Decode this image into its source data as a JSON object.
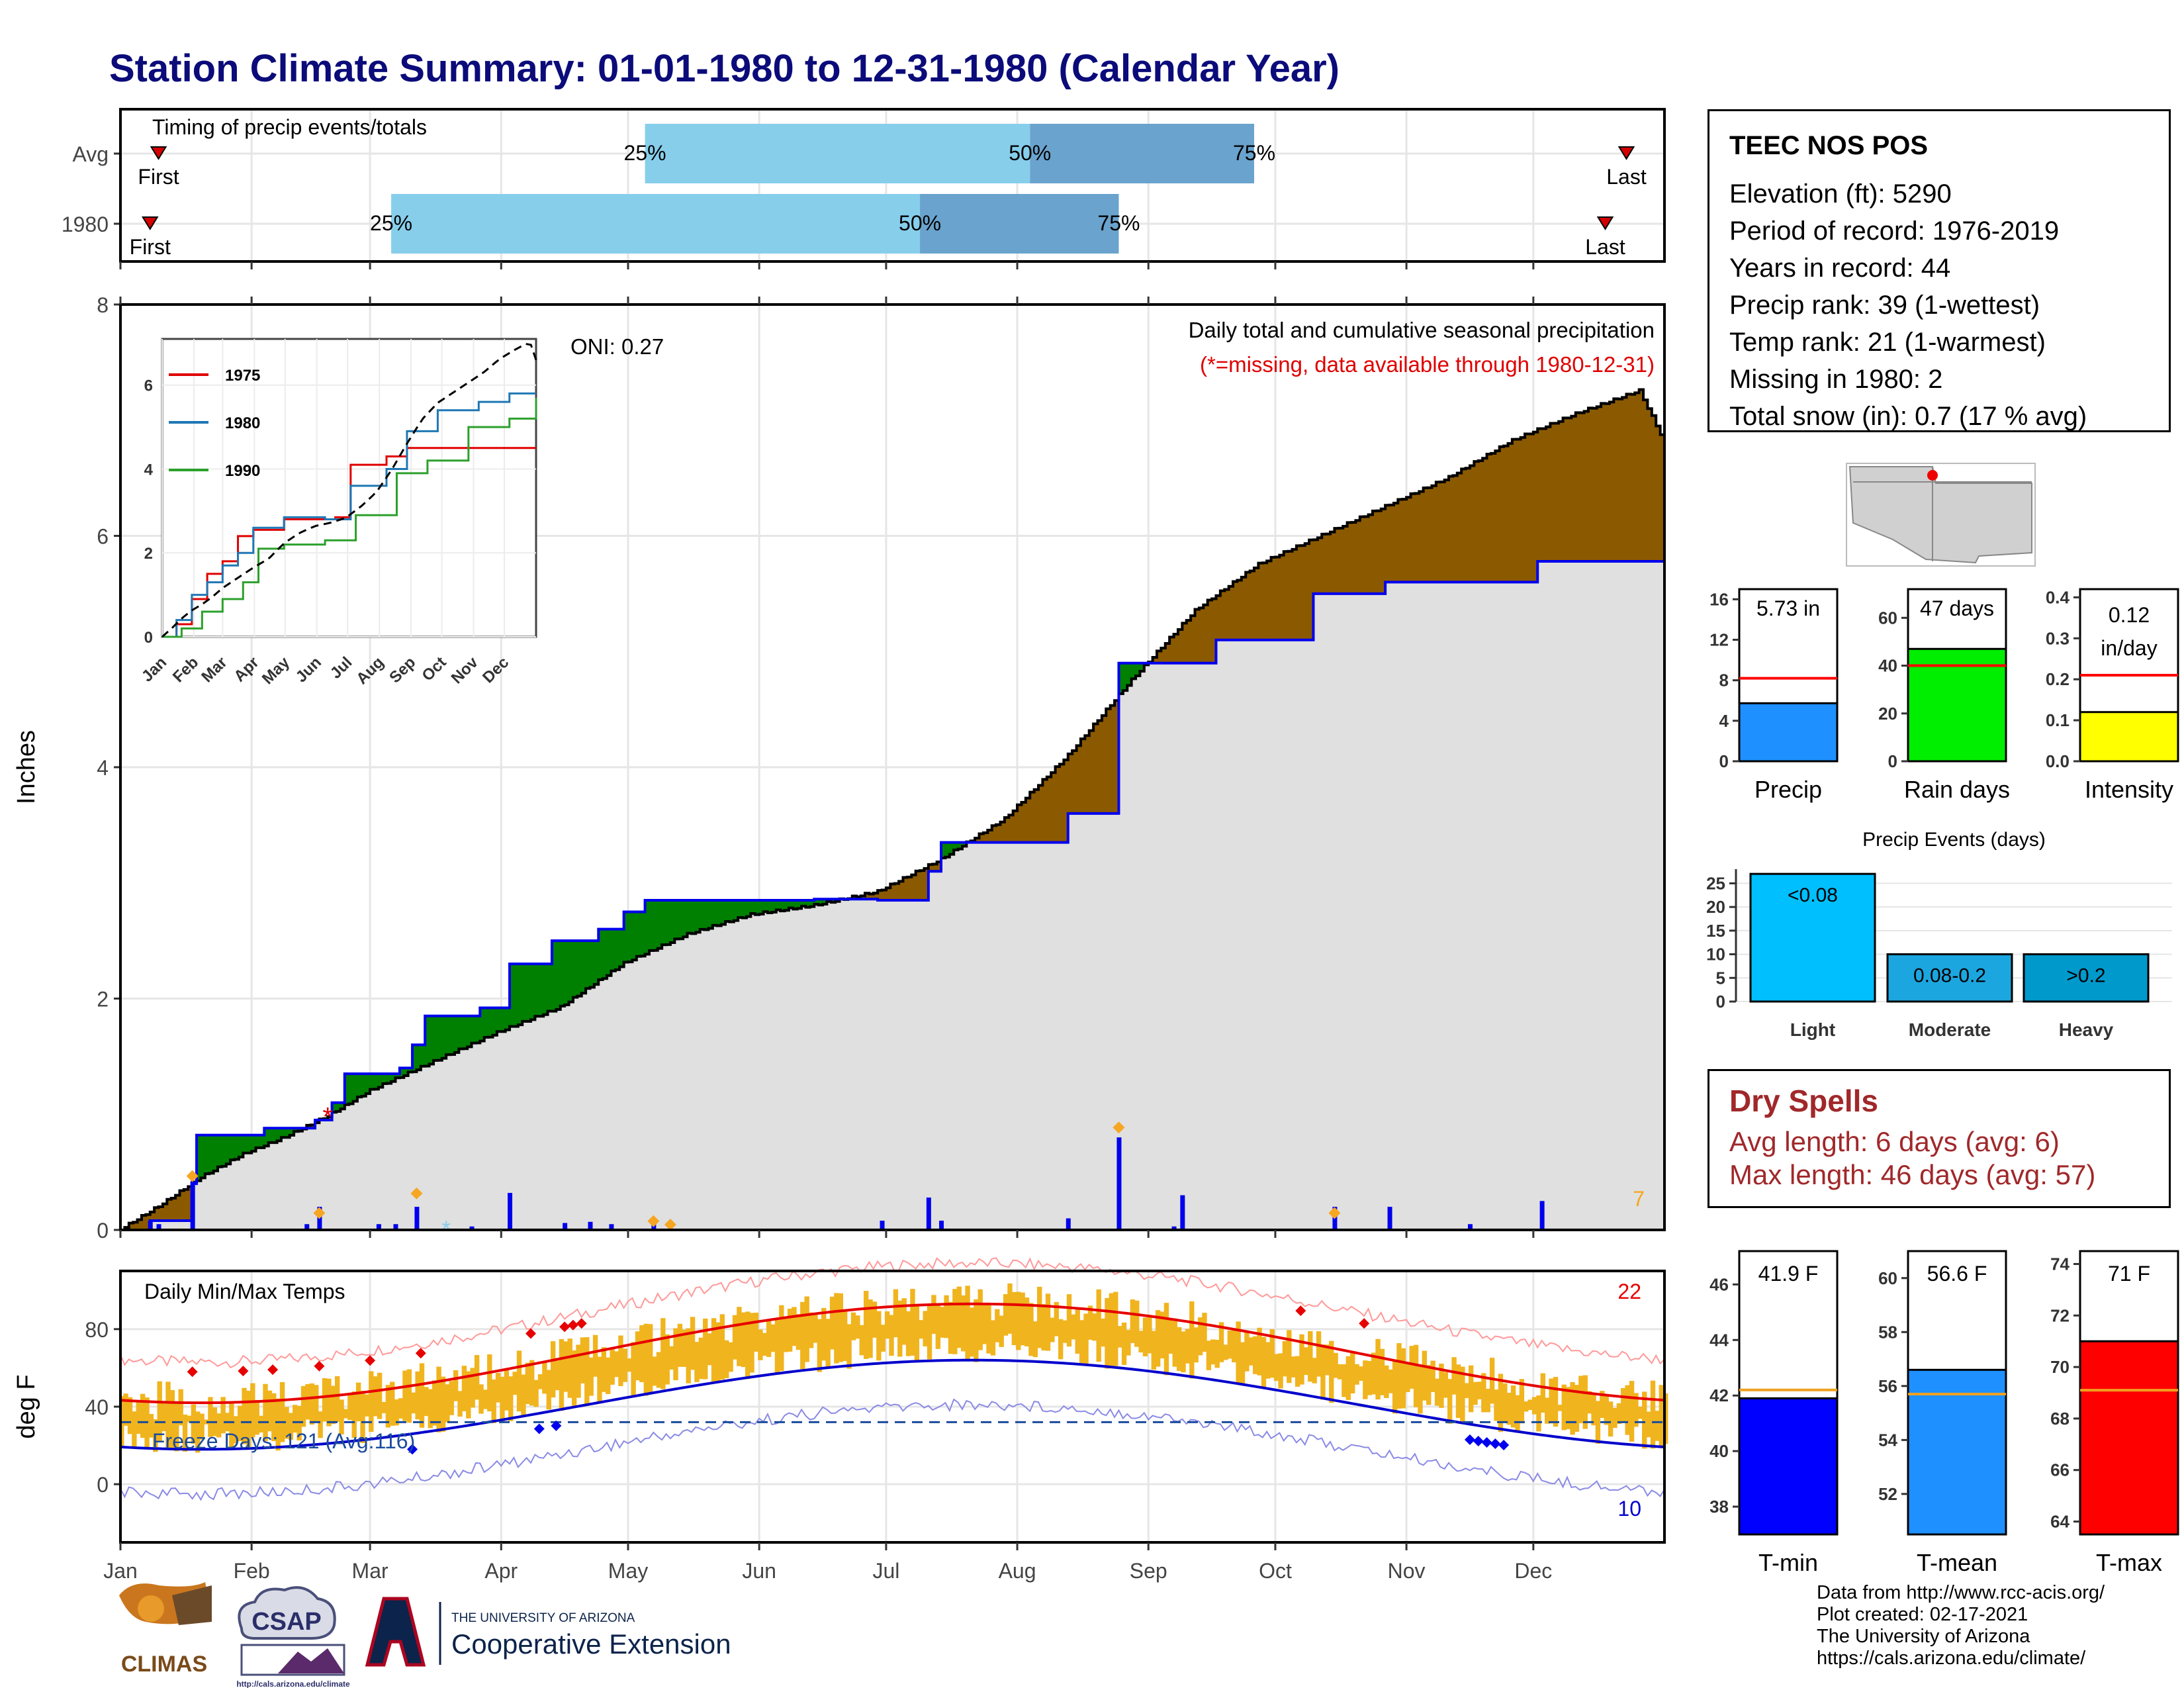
{
  "title": "Station Climate Summary: 01-01-1980 to 12-31-1980 (Calendar Year)",
  "months": [
    "Jan",
    "Feb",
    "Mar",
    "Apr",
    "May",
    "Jun",
    "Jul",
    "Aug",
    "Sep",
    "Oct",
    "Nov",
    "Dec"
  ],
  "station": {
    "name": "TEEC NOS POS",
    "lines": [
      "Elevation (ft): 5290",
      "Period of record: 1976-2019",
      "Years in record: 44",
      "Precip rank: 39 (1-wettest)",
      "Temp rank: 21 (1-warmest)",
      "Missing in 1980: 2",
      "Total snow (in): 0.7 (17 % avg)"
    ]
  },
  "timing": {
    "label": "Timing of precip events/totals",
    "rows": [
      {
        "name": "Avg",
        "first_doy": 10,
        "p25_doy": 125,
        "p50_doy": 216,
        "p75_doy": 269,
        "last_doy": 357
      },
      {
        "name": "1980",
        "first_doy": 8,
        "p25_doy": 65,
        "p50_doy": 190,
        "p75_doy": 237,
        "last_doy": 352
      }
    ],
    "first_label": "First",
    "last_label": "Last",
    "p25_label": "25%",
    "p50_label": "50%",
    "p75_label": "75%",
    "colors": {
      "light": "#87ceeb",
      "dark": "#6aa3cd",
      "marker": "#d40000"
    }
  },
  "chart_data": [
    {
      "type": "line",
      "name": "cumulative-precip",
      "title": "Daily total and cumulative seasonal precipitation",
      "subtitle": "(*=missing, data available through 1980-12-31)",
      "oni": "ONI: 0.27",
      "ylabel": "Inches",
      "xlabel": "",
      "ylim": [
        0,
        8
      ],
      "yticks": [
        0,
        2,
        4,
        6,
        8
      ],
      "x_unit": "day of year",
      "series": [
        {
          "name": "1980 cumulative",
          "color": "#0000dd",
          "points": [
            [
              1,
              0
            ],
            [
              8,
              0.08
            ],
            [
              18,
              0.4
            ],
            [
              19,
              0.82
            ],
            [
              30,
              0.82
            ],
            [
              35,
              0.88
            ],
            [
              47,
              0.95
            ],
            [
              51,
              1.1
            ],
            [
              54,
              1.35
            ],
            [
              67,
              1.4
            ],
            [
              70,
              1.6
            ],
            [
              73,
              1.85
            ],
            [
              86,
              1.92
            ],
            [
              93,
              2.3
            ],
            [
              103,
              2.5
            ],
            [
              114,
              2.6
            ],
            [
              120,
              2.75
            ],
            [
              125,
              2.85
            ],
            [
              165,
              2.86
            ],
            [
              180,
              2.85
            ],
            [
              192,
              3.1
            ],
            [
              195,
              3.35
            ],
            [
              225,
              3.6
            ],
            [
              237,
              4.9
            ],
            [
              260,
              5.1
            ],
            [
              283,
              5.5
            ],
            [
              300,
              5.6
            ],
            [
              336,
              5.78
            ],
            [
              366,
              5.78
            ]
          ]
        },
        {
          "name": "Average cumulative",
          "color": "#000000",
          "points": [
            [
              1,
              0
            ],
            [
              10,
              0.2
            ],
            [
              20,
              0.45
            ],
            [
              30,
              0.65
            ],
            [
              40,
              0.8
            ],
            [
              50,
              0.98
            ],
            [
              60,
              1.2
            ],
            [
              75,
              1.45
            ],
            [
              90,
              1.7
            ],
            [
              105,
              1.92
            ],
            [
              120,
              2.3
            ],
            [
              135,
              2.55
            ],
            [
              150,
              2.72
            ],
            [
              165,
              2.8
            ],
            [
              180,
              2.92
            ],
            [
              195,
              3.2
            ],
            [
              210,
              3.55
            ],
            [
              225,
              4.1
            ],
            [
              240,
              4.75
            ],
            [
              255,
              5.35
            ],
            [
              270,
              5.75
            ],
            [
              285,
              6.0
            ],
            [
              300,
              6.25
            ],
            [
              315,
              6.5
            ],
            [
              330,
              6.82
            ],
            [
              345,
              7.05
            ],
            [
              360,
              7.25
            ],
            [
              366,
              6.8
            ]
          ]
        }
      ],
      "daily_bars": [
        [
          8,
          0.08
        ],
        [
          10,
          0.05
        ],
        [
          18,
          0.42
        ],
        [
          45,
          0.05
        ],
        [
          48,
          0.2
        ],
        [
          62,
          0.05
        ],
        [
          66,
          0.05
        ],
        [
          71,
          0.2
        ],
        [
          84,
          0.03
        ],
        [
          93,
          0.32
        ],
        [
          106,
          0.06
        ],
        [
          112,
          0.07
        ],
        [
          117,
          0.05
        ],
        [
          127,
          0.05
        ],
        [
          181,
          0.08
        ],
        [
          192,
          0.28
        ],
        [
          195,
          0.08
        ],
        [
          225,
          0.1
        ],
        [
          237,
          0.8
        ],
        [
          250,
          0.03
        ],
        [
          252,
          0.3
        ],
        [
          288,
          0.2
        ],
        [
          301,
          0.2
        ],
        [
          320,
          0.05
        ],
        [
          337,
          0.25
        ]
      ],
      "colors": {
        "below_avg": "#8b5a00",
        "above_avg": "#008000",
        "area": "#e0e0e0",
        "bars": "#0000ee",
        "markers": "#f6a623"
      },
      "corner_count": "7"
    },
    {
      "type": "line",
      "name": "daily-temps",
      "title": "Daily Min/Max Temps",
      "ylabel": "deg F",
      "ylim": [
        -30,
        110
      ],
      "yticks": [
        0,
        40,
        80
      ],
      "freeze_label": "Freeze Days: 121 (Avg:116)",
      "freeze_line": 32,
      "record_high_count": "22",
      "record_low_count": "10",
      "normals": {
        "tmax_winter": 42,
        "tmax_summer": 93,
        "tmin_winter": 18,
        "tmin_summer": 64
      },
      "colors": {
        "bars": "#f0b41e",
        "tmax": "#e60000",
        "tmin": "#0000cc",
        "freeze": "#1a4b9c"
      }
    },
    {
      "type": "bar",
      "name": "precip-summary",
      "panels": [
        {
          "label": "Precip",
          "value_label": "5.73 in",
          "value": 5.73,
          "avg": 8.2,
          "ylim": [
            0,
            17
          ],
          "yticks": [
            0,
            4,
            8,
            12,
            16
          ],
          "color": "#1e90ff"
        },
        {
          "label": "Rain days",
          "value_label": "47 days",
          "value": 47,
          "avg": 40,
          "ylim": [
            0,
            72
          ],
          "yticks": [
            0,
            20,
            40,
            60
          ],
          "color": "#00ee00"
        },
        {
          "label": "Intensity",
          "value_label_1": "0.12",
          "value_label_2": "in/day",
          "value": 0.12,
          "avg": 0.21,
          "ylim": [
            0,
            0.42
          ],
          "yticks": [
            0.0,
            0.1,
            0.2,
            0.3,
            0.4
          ],
          "color": "#ffff00"
        }
      ]
    },
    {
      "type": "bar",
      "name": "precip-events",
      "title": "Precip Events (days)",
      "categories": [
        "Light",
        "Moderate",
        "Heavy"
      ],
      "bar_labels": [
        "<0.08",
        "0.08-0.2",
        ">0.2"
      ],
      "values": [
        27,
        10,
        10
      ],
      "ylim": [
        0,
        28
      ],
      "yticks": [
        0,
        5,
        10,
        15,
        20,
        25
      ],
      "colors": [
        "#00bfff",
        "#1ca6e0",
        "#0099cc"
      ]
    },
    {
      "type": "bar",
      "name": "temp-summary",
      "panels": [
        {
          "label": "T-min",
          "value_label": "41.9 F",
          "value": 41.9,
          "avg": 42.2,
          "ylim": [
            37,
            47.2
          ],
          "yticks": [
            38,
            40,
            42,
            44,
            46
          ],
          "color": "#0000ff"
        },
        {
          "label": "T-mean",
          "value_label": "56.6 F",
          "value": 56.6,
          "avg": 55.7,
          "ylim": [
            50.5,
            61
          ],
          "yticks": [
            52,
            54,
            56,
            58,
            60
          ],
          "color": "#1e90ff"
        },
        {
          "label": "T-max",
          "value_label": "71 F",
          "value": 71.0,
          "avg": 69.1,
          "ylim": [
            63.5,
            74.5
          ],
          "yticks": [
            64,
            66,
            68,
            70,
            72,
            74
          ],
          "color": "#ff0000"
        }
      ]
    }
  ],
  "inset": {
    "legend": [
      {
        "name": "1975",
        "color": "#e00000"
      },
      {
        "name": "1980",
        "color": "#1f77b4"
      },
      {
        "name": "1990",
        "color": "#2ca02c"
      }
    ],
    "xticks": [
      "Jan",
      "Feb",
      "Mar",
      "Apr",
      "May",
      "Jun",
      "Jul",
      "Aug",
      "Sep",
      "Oct",
      "Nov",
      "Dec"
    ],
    "yticks": [
      0,
      2,
      4,
      6
    ]
  },
  "dry_spells": {
    "heading": "Dry Spells",
    "avg_length": "Avg length: 6 days (avg: 6)",
    "max_length": "Max length: 46 days (avg: 57)"
  },
  "logos": {
    "climas": "CLIMAS",
    "csap": "CSAP",
    "csap_url": "http://cals.arizona.edu/climate",
    "ua_top": "THE UNIVERSITY OF ARIZONA",
    "ua_bottom": "Cooperative Extension"
  },
  "credits": [
    "Data from http://www.rcc-acis.org/",
    "Plot created: 02-17-2021",
    "The University of Arizona",
    "https://cals.arizona.edu/climate/"
  ]
}
